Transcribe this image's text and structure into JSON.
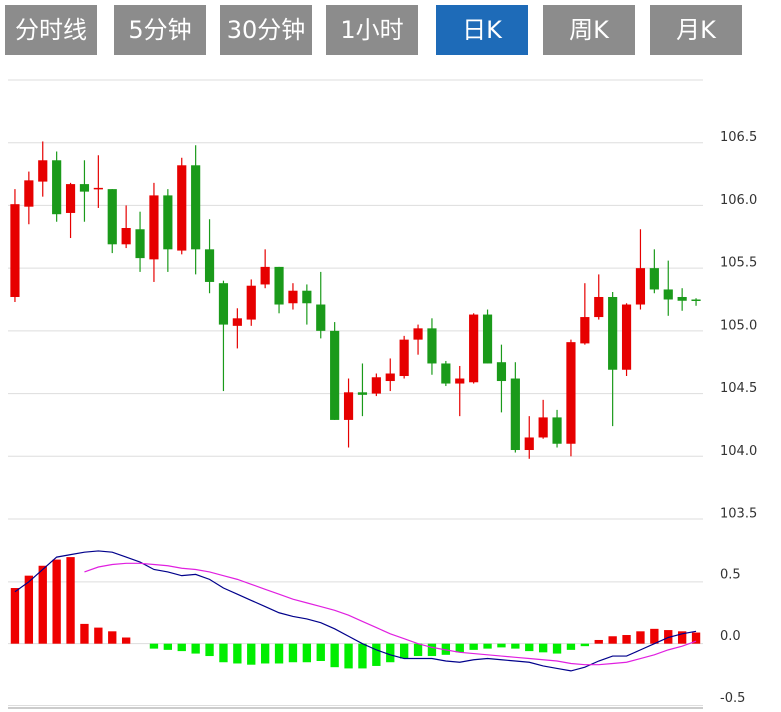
{
  "tabs": [
    "分时线",
    "5分钟",
    "30分钟",
    "1小时",
    "日K",
    "周K",
    "月K"
  ],
  "active_tab": 4,
  "tab_color": "#8c8c8c",
  "active_tab_color": "#1e6bb8",
  "chart_data": [
    {
      "type": "candlestick",
      "up_color": "#e60000",
      "down_color": "#1a9a1a",
      "ylim": [
        103.5,
        107.0
      ],
      "yticks": [
        103.5,
        {
          "value": 104,
          "label": "104.0"
        },
        104.5,
        {
          "value": 105,
          "label": "105.0"
        },
        105.5,
        {
          "value": 106,
          "label": "106.0"
        },
        106.5
      ],
      "grid": true,
      "open": [
        105.27,
        105.99,
        106.19,
        106.36,
        105.94,
        106.17,
        106.13,
        106.13,
        105.69,
        105.81,
        105.57,
        106.08,
        105.64,
        106.32,
        105.65,
        105.38,
        105.04,
        105.09,
        105.37,
        105.51,
        105.22,
        105.32,
        105.21,
        105.0,
        104.29,
        104.51,
        104.5,
        104.6,
        104.64,
        104.93,
        105.02,
        104.74,
        104.58,
        104.59,
        105.13,
        104.75,
        104.62,
        104.05,
        104.15,
        104.31,
        104.1,
        104.9,
        105.11,
        105.27,
        104.69,
        105.21,
        105.5,
        105.33,
        105.27,
        105.25
      ],
      "high": [
        106.13,
        106.27,
        106.51,
        106.43,
        106.18,
        106.36,
        106.4,
        106.13,
        106.0,
        105.95,
        106.18,
        106.13,
        106.38,
        106.48,
        105.89,
        105.4,
        105.18,
        105.41,
        105.65,
        105.51,
        105.38,
        105.37,
        105.47,
        105.07,
        104.62,
        104.74,
        104.66,
        104.78,
        104.96,
        105.05,
        105.1,
        104.76,
        104.72,
        105.14,
        105.17,
        104.89,
        104.75,
        104.32,
        104.45,
        104.37,
        104.93,
        105.38,
        105.45,
        105.31,
        105.22,
        105.81,
        105.65,
        105.56,
        105.34,
        105.26
      ],
      "low": [
        105.23,
        105.85,
        106.07,
        105.87,
        105.74,
        105.87,
        105.98,
        105.62,
        105.66,
        105.47,
        105.39,
        105.47,
        105.61,
        105.45,
        105.3,
        104.52,
        104.86,
        105.04,
        105.34,
        105.14,
        105.17,
        105.05,
        104.94,
        104.29,
        104.07,
        104.32,
        104.48,
        104.52,
        104.62,
        104.81,
        104.65,
        104.56,
        104.32,
        104.58,
        104.74,
        104.35,
        104.03,
        103.98,
        104.14,
        104.07,
        104.0,
        104.89,
        105.09,
        104.24,
        104.64,
        105.17,
        105.3,
        105.12,
        105.16,
        105.2
      ],
      "close": [
        106.01,
        106.2,
        106.36,
        105.93,
        106.17,
        106.11,
        106.14,
        105.69,
        105.82,
        105.58,
        106.08,
        105.65,
        106.32,
        105.65,
        105.39,
        105.05,
        105.1,
        105.36,
        105.51,
        105.21,
        105.32,
        105.22,
        105.0,
        104.29,
        104.51,
        104.49,
        104.63,
        104.66,
        104.93,
        105.02,
        104.74,
        104.58,
        104.62,
        105.13,
        104.74,
        104.6,
        104.05,
        104.15,
        104.31,
        104.1,
        104.91,
        105.11,
        105.27,
        104.69,
        105.21,
        105.5,
        105.33,
        105.25,
        105.24,
        105.24
      ]
    },
    {
      "type": "macd",
      "ylim": [
        -0.52,
        1.0
      ],
      "yticks": [
        -0.5,
        {
          "value": 0,
          "label": "0.0"
        },
        0.5
      ],
      "pos_color": "#ee0000",
      "neg_color": "#00ee00",
      "values": [
        0.45,
        0.55,
        0.63,
        0.68,
        0.7,
        0.16,
        0.13,
        0.1,
        0.05,
        0,
        -0.04,
        -0.05,
        -0.06,
        -0.08,
        -0.1,
        -0.15,
        -0.16,
        -0.17,
        -0.16,
        -0.16,
        -0.15,
        -0.15,
        -0.14,
        -0.19,
        -0.2,
        -0.2,
        -0.18,
        -0.15,
        -0.12,
        -0.1,
        -0.1,
        -0.09,
        -0.07,
        -0.05,
        -0.04,
        -0.03,
        -0.04,
        -0.06,
        -0.07,
        -0.08,
        -0.05,
        -0.02,
        0.03,
        0.06,
        0.07,
        0.1,
        0.12,
        0.11,
        0.1,
        0.09
      ],
      "series": [
        {
          "color": "#00008b",
          "values": [
            0.42,
            0.5,
            0.6,
            0.7,
            0.72,
            0.74,
            0.75,
            0.74,
            0.7,
            0.66,
            0.6,
            0.58,
            0.55,
            0.56,
            0.52,
            0.45,
            0.4,
            0.35,
            0.3,
            0.25,
            0.22,
            0.2,
            0.17,
            0.12,
            0.06,
            0.0,
            -0.05,
            -0.09,
            -0.12,
            -0.12,
            -0.12,
            -0.14,
            -0.15,
            -0.13,
            -0.12,
            -0.13,
            -0.14,
            -0.15,
            -0.18,
            -0.2,
            -0.22,
            -0.19,
            -0.14,
            -0.1,
            -0.1,
            -0.05,
            0.0,
            0.05,
            0.08,
            0.1
          ]
        },
        {
          "color": "#e020e0",
          "values": [
            null,
            null,
            null,
            null,
            null,
            0.58,
            0.62,
            0.64,
            0.65,
            0.65,
            0.64,
            0.63,
            0.61,
            0.6,
            0.58,
            0.55,
            0.52,
            0.48,
            0.44,
            0.4,
            0.36,
            0.33,
            0.3,
            0.27,
            0.23,
            0.18,
            0.13,
            0.08,
            0.04,
            0.0,
            -0.03,
            -0.05,
            -0.07,
            -0.08,
            -0.09,
            -0.1,
            -0.11,
            -0.12,
            -0.13,
            -0.14,
            -0.16,
            -0.17,
            -0.17,
            -0.16,
            -0.15,
            -0.12,
            -0.09,
            -0.05,
            -0.02,
            0.02
          ]
        }
      ]
    }
  ]
}
